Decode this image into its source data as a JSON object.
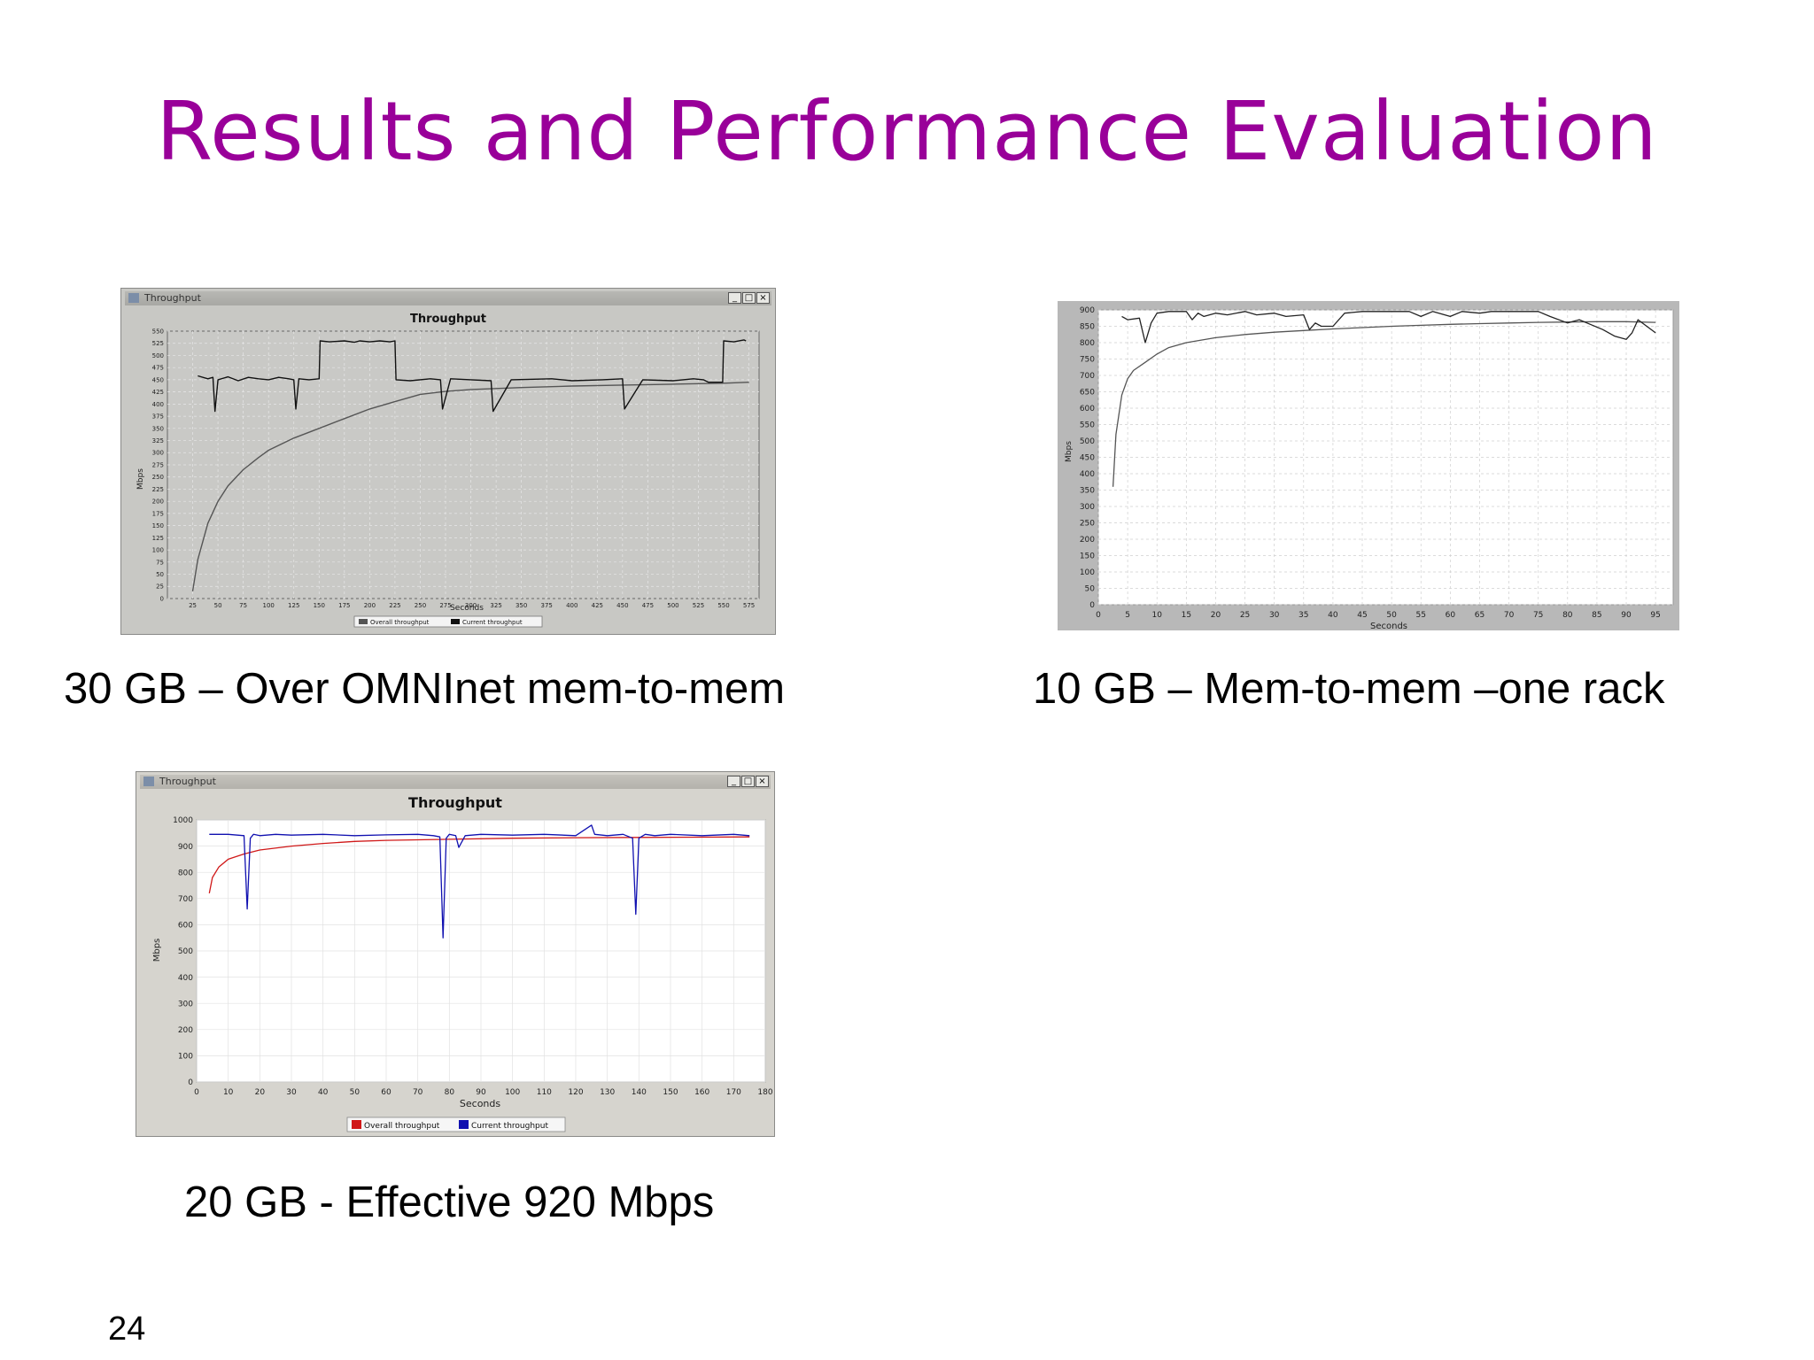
{
  "slide": {
    "title": "Results and Performance Evaluation",
    "page_number": "24",
    "captions": {
      "c1": "30 GB – Over OMNInet mem-to-mem",
      "c2": "10 GB – Mem-to-mem –one rack",
      "c3": "20 GB - Effective  920 Mbps"
    }
  },
  "windows": {
    "w1": {
      "title": "Throughput",
      "minimize": "_",
      "maximize": "□",
      "close": "×"
    },
    "w3": {
      "title": "Throughput",
      "minimize": "_",
      "maximize": "□",
      "close": "×"
    }
  },
  "colors": {
    "title": "#990099",
    "series_overall_c3": "#d01818",
    "series_current_c3": "#1010b0"
  },
  "chart_data": [
    {
      "id": "c1",
      "type": "line",
      "title": "Throughput",
      "xlabel": "Seconds",
      "ylabel": "Mbps",
      "xlim": [
        0,
        585
      ],
      "ylim": [
        0,
        550
      ],
      "xticks": [
        25,
        50,
        75,
        100,
        125,
        150,
        175,
        200,
        225,
        250,
        275,
        300,
        325,
        350,
        375,
        400,
        425,
        450,
        475,
        500,
        525,
        550,
        575
      ],
      "yticks": [
        0,
        25,
        50,
        75,
        100,
        125,
        150,
        175,
        200,
        225,
        250,
        275,
        300,
        325,
        350,
        375,
        400,
        425,
        450,
        475,
        500,
        525,
        550
      ],
      "grid": true,
      "legend": "bottom-center",
      "series": [
        {
          "name": "Overall throughput",
          "color": "#555555",
          "x": [
            25,
            30,
            40,
            50,
            60,
            75,
            90,
            100,
            125,
            150,
            175,
            200,
            225,
            250,
            275,
            300,
            325,
            350,
            400,
            450,
            500,
            550,
            575
          ],
          "y": [
            15,
            80,
            155,
            200,
            232,
            265,
            290,
            305,
            330,
            350,
            370,
            390,
            405,
            420,
            426,
            430,
            432,
            434,
            437,
            439,
            441,
            443,
            445
          ]
        },
        {
          "name": "Current throughput",
          "color": "#111111",
          "x": [
            30,
            40,
            45,
            47,
            50,
            60,
            70,
            80,
            90,
            100,
            110,
            120,
            125,
            127,
            130,
            140,
            150,
            151,
            160,
            175,
            185,
            190,
            200,
            210,
            220,
            225,
            226,
            240,
            260,
            270,
            272,
            280,
            300,
            320,
            322,
            340,
            380,
            400,
            430,
            450,
            452,
            470,
            500,
            520,
            530,
            535,
            549,
            550,
            560,
            570,
            572
          ],
          "y": [
            458,
            452,
            455,
            385,
            450,
            456,
            448,
            455,
            452,
            450,
            455,
            452,
            450,
            390,
            452,
            450,
            452,
            530,
            528,
            530,
            527,
            530,
            528,
            530,
            528,
            530,
            450,
            448,
            452,
            450,
            390,
            452,
            450,
            448,
            385,
            450,
            452,
            448,
            450,
            452,
            390,
            450,
            448,
            452,
            450,
            445,
            445,
            530,
            528,
            532,
            530
          ]
        }
      ]
    },
    {
      "id": "c2",
      "type": "line",
      "title": "",
      "xlabel": "Seconds",
      "ylabel": "Mbps",
      "xlim": [
        0,
        98
      ],
      "ylim": [
        0,
        900
      ],
      "xticks": [
        0,
        5,
        10,
        15,
        20,
        25,
        30,
        35,
        40,
        45,
        50,
        55,
        60,
        65,
        70,
        75,
        80,
        85,
        90,
        95
      ],
      "yticks": [
        0,
        50,
        100,
        150,
        200,
        250,
        300,
        350,
        400,
        450,
        500,
        550,
        600,
        650,
        700,
        750,
        800,
        850,
        900
      ],
      "grid": true,
      "legend": "none",
      "series": [
        {
          "name": "",
          "color": "#555555",
          "x": [
            2.5,
            3,
            4,
            5,
            6,
            8,
            10,
            12,
            15,
            20,
            25,
            30,
            35,
            40,
            45,
            50,
            55,
            60,
            65,
            70,
            75,
            80,
            85,
            90,
            95
          ],
          "y": [
            360,
            520,
            640,
            690,
            715,
            740,
            765,
            785,
            800,
            815,
            825,
            832,
            837,
            842,
            846,
            850,
            853,
            856,
            858,
            860,
            862,
            863,
            864,
            864,
            862
          ]
        },
        {
          "name": "",
          "color": "#222222",
          "x": [
            4,
            5,
            7,
            8,
            9,
            10,
            12,
            15,
            16,
            17,
            18,
            20,
            22,
            25,
            27,
            30,
            32,
            35,
            36,
            37,
            38,
            40,
            42,
            45,
            48,
            50,
            53,
            55,
            57,
            60,
            62,
            65,
            67,
            70,
            72,
            75,
            77,
            80,
            82,
            84,
            86,
            88,
            90,
            91,
            92,
            95
          ],
          "y": [
            880,
            870,
            875,
            800,
            860,
            890,
            895,
            895,
            870,
            890,
            880,
            890,
            885,
            895,
            885,
            890,
            880,
            885,
            840,
            860,
            850,
            850,
            890,
            895,
            895,
            895,
            895,
            880,
            895,
            880,
            895,
            890,
            895,
            895,
            895,
            895,
            880,
            860,
            870,
            855,
            840,
            820,
            810,
            830,
            870,
            830
          ]
        }
      ]
    },
    {
      "id": "c3",
      "type": "line",
      "title": "Throughput",
      "xlabel": "Seconds",
      "ylabel": "Mbps",
      "xlim": [
        0,
        180
      ],
      "ylim": [
        0,
        1000
      ],
      "xticks": [
        0,
        10,
        20,
        30,
        40,
        50,
        60,
        70,
        80,
        90,
        100,
        110,
        120,
        130,
        140,
        150,
        160,
        170,
        180
      ],
      "yticks": [
        0,
        100,
        200,
        300,
        400,
        500,
        600,
        700,
        800,
        900,
        1000
      ],
      "grid": true,
      "legend": "bottom-center",
      "series": [
        {
          "name": "Overall throughput",
          "color": "#d01818",
          "x": [
            4,
            5,
            7,
            10,
            15,
            20,
            30,
            40,
            50,
            60,
            80,
            100,
            120,
            140,
            160,
            175
          ],
          "y": [
            720,
            780,
            820,
            850,
            870,
            885,
            900,
            910,
            918,
            922,
            926,
            930,
            932,
            933,
            934,
            935
          ]
        },
        {
          "name": "Current throughput",
          "color": "#1010b0",
          "x": [
            4,
            10,
            15,
            16,
            17,
            18,
            20,
            25,
            30,
            40,
            50,
            60,
            70,
            75,
            77,
            78,
            79,
            80,
            82,
            83,
            85,
            90,
            100,
            110,
            120,
            125,
            126,
            130,
            135,
            138,
            139,
            140,
            142,
            145,
            150,
            160,
            170,
            175
          ],
          "y": [
            945,
            945,
            940,
            660,
            930,
            945,
            940,
            945,
            942,
            945,
            940,
            943,
            945,
            940,
            935,
            550,
            930,
            945,
            940,
            895,
            940,
            945,
            942,
            945,
            940,
            980,
            945,
            940,
            945,
            930,
            640,
            930,
            945,
            940,
            945,
            940,
            945,
            940
          ]
        }
      ]
    }
  ]
}
